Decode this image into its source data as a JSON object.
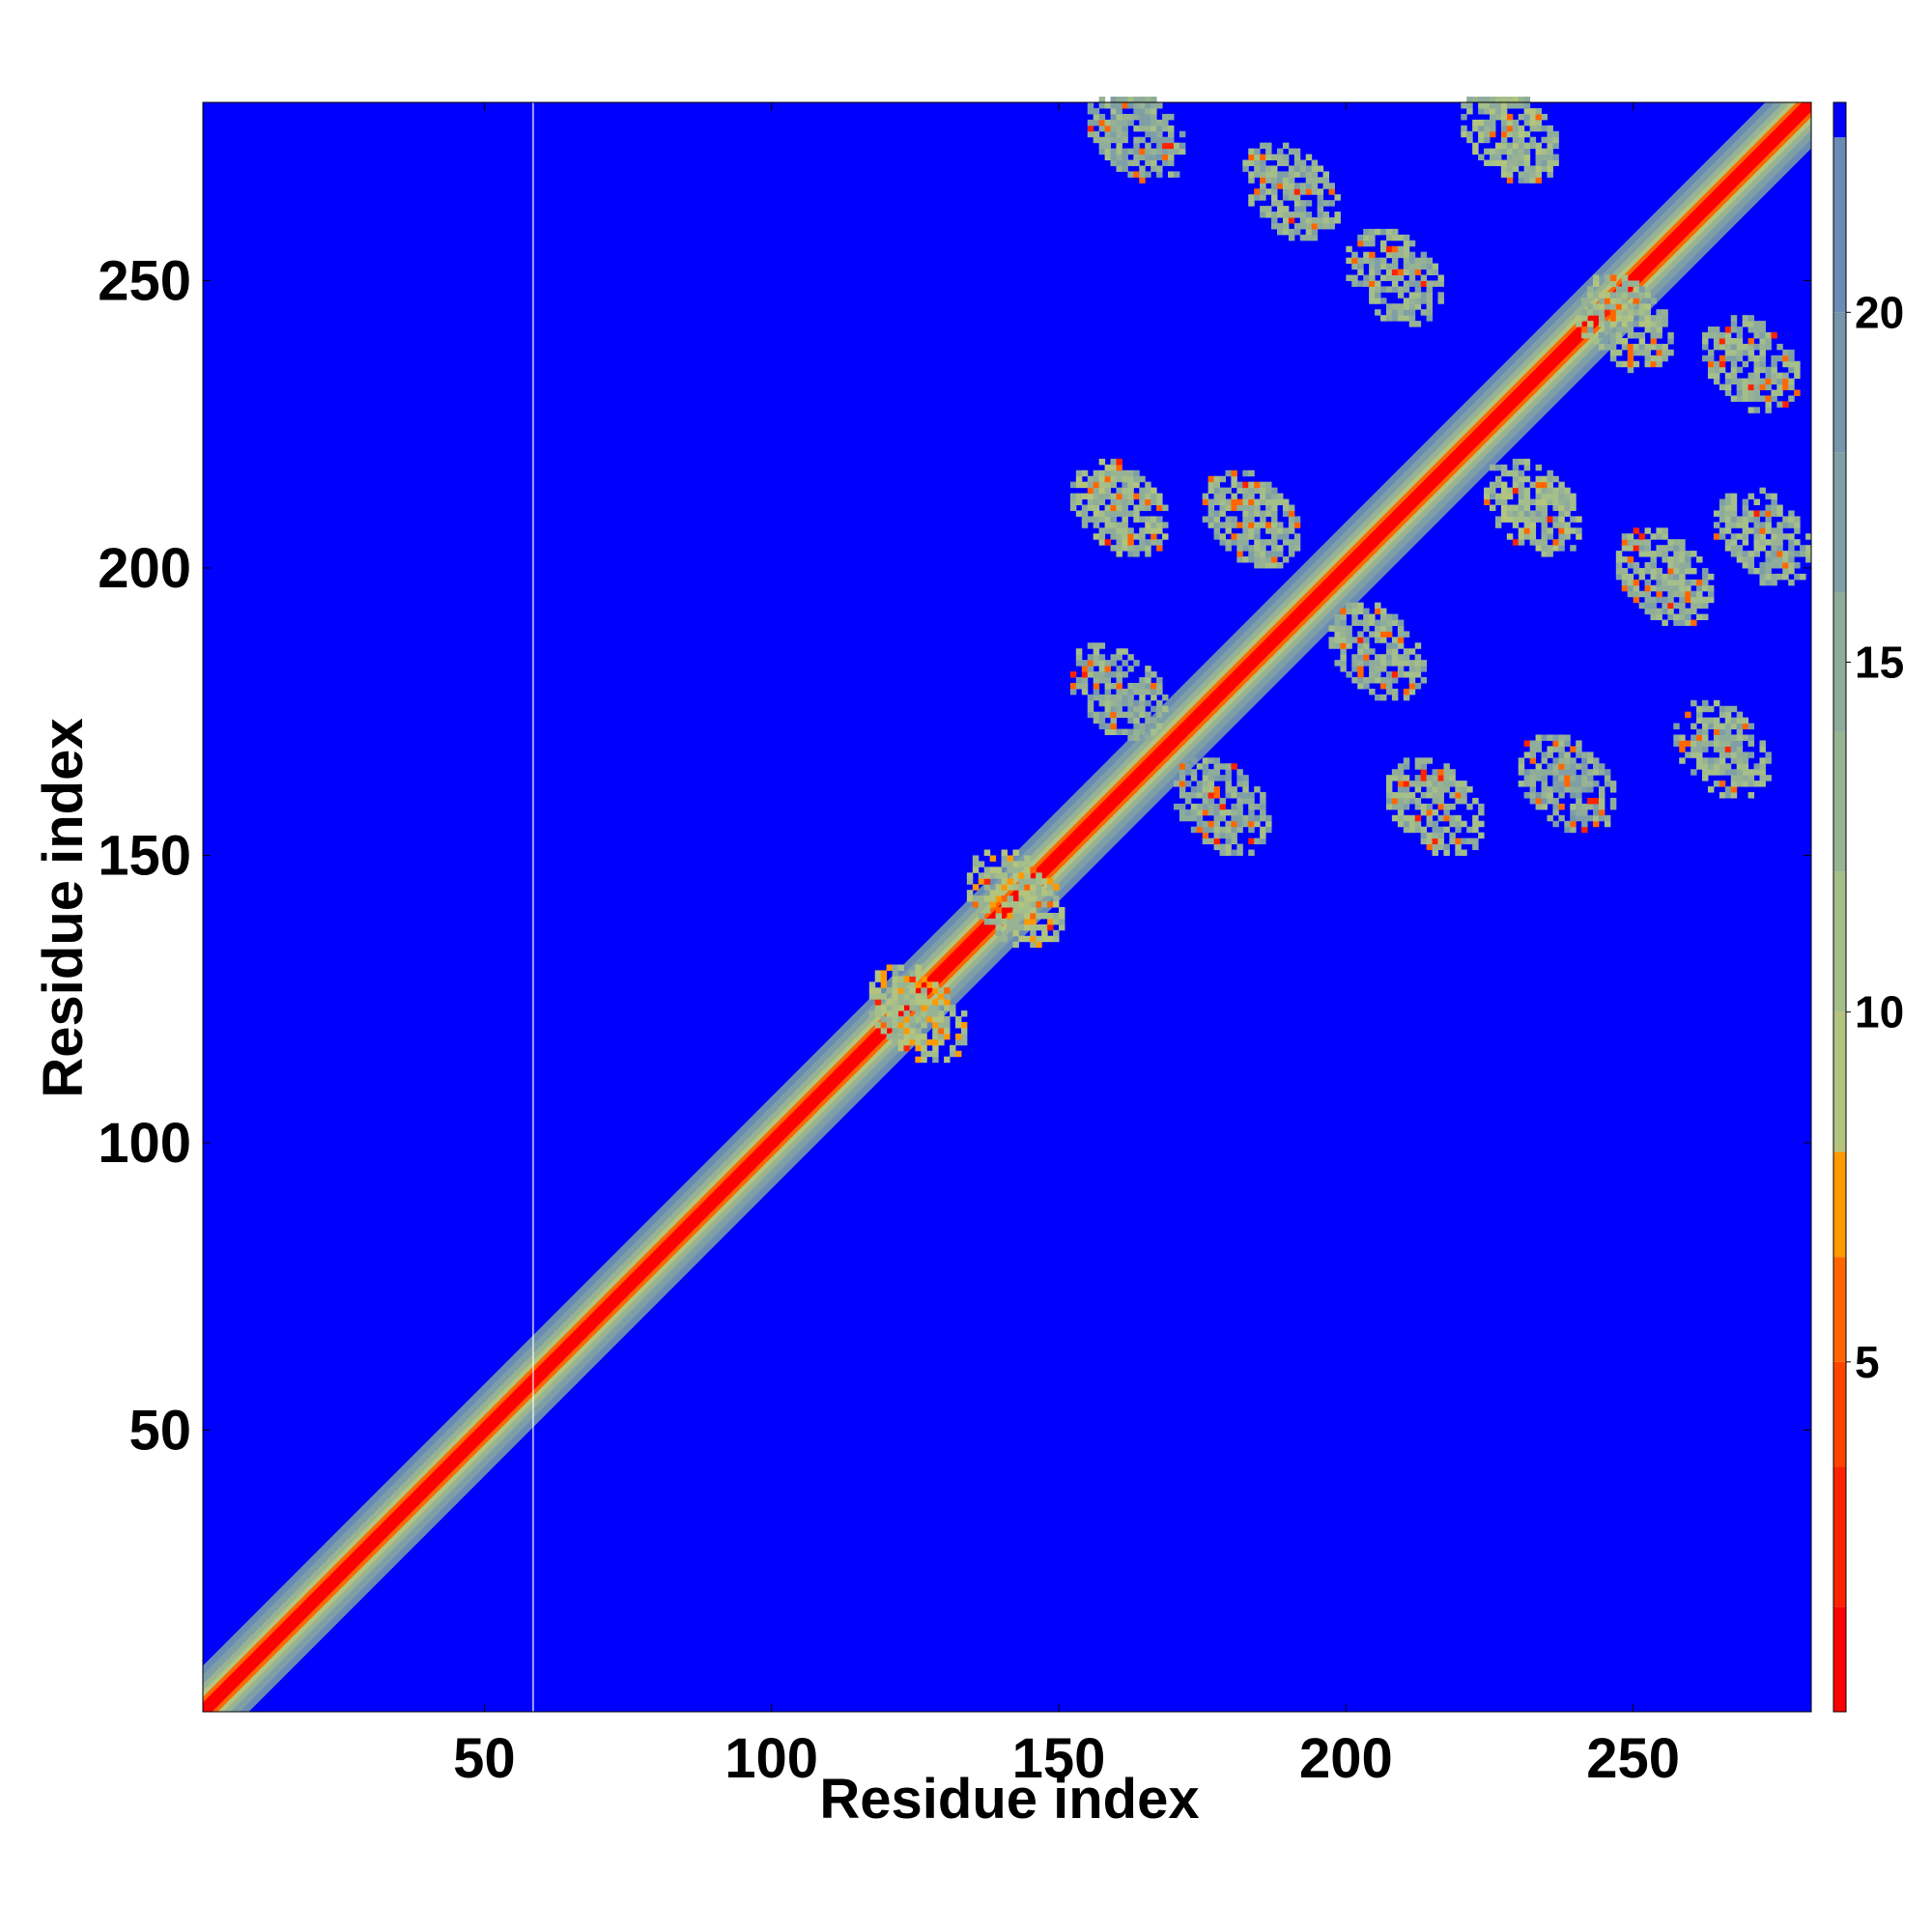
{
  "chart_data": {
    "type": "heatmap",
    "title": "",
    "xlabel": "Residue index",
    "ylabel": "Residue index",
    "xlim": [
      1,
      281
    ],
    "ylim": [
      1,
      281
    ],
    "x_ticks": [
      50,
      100,
      150,
      200,
      250
    ],
    "y_ticks": [
      50,
      100,
      150,
      200,
      250
    ],
    "colorbar": {
      "range": [
        0,
        23
      ],
      "ticks": [
        5,
        10,
        15,
        20
      ],
      "bins": [
        {
          "from": 0,
          "to": 1.5,
          "color": "#ff0000"
        },
        {
          "from": 1.5,
          "to": 3.5,
          "color": "#ff2200"
        },
        {
          "from": 3.5,
          "to": 5,
          "color": "#ff4400"
        },
        {
          "from": 5,
          "to": 6.5,
          "color": "#ff6600"
        },
        {
          "from": 6.5,
          "to": 8,
          "color": "#ff9900"
        },
        {
          "from": 8,
          "to": 10,
          "color": "#b3c47e"
        },
        {
          "from": 10,
          "to": 12,
          "color": "#a5bf8a"
        },
        {
          "from": 12,
          "to": 14,
          "color": "#98b394"
        },
        {
          "from": 14,
          "to": 16,
          "color": "#8eac9b"
        },
        {
          "from": 16,
          "to": 18,
          "color": "#7f9fa6"
        },
        {
          "from": 18,
          "to": 20,
          "color": "#7596ab"
        },
        {
          "from": 20,
          "to": 22.5,
          "color": "#6a8cb4"
        },
        {
          "from": 22.5,
          "to": 23,
          "color": "#0000ff"
        }
      ]
    },
    "background_value_color": "#0000ff",
    "diagonal_band": {
      "from": 1,
      "to": 281,
      "core_value": 1,
      "halfwidth_residues": 8
    },
    "contact_blobs": [
      {
        "x": 163,
        "y": 275,
        "value": 15
      },
      {
        "x": 190,
        "y": 265,
        "value": 14
      },
      {
        "x": 228,
        "y": 275,
        "value": 13
      },
      {
        "x": 208,
        "y": 250,
        "value": 14
      },
      {
        "x": 248,
        "y": 242,
        "value": 13
      },
      {
        "x": 270,
        "y": 235,
        "value": 14
      },
      {
        "x": 160,
        "y": 210,
        "value": 13
      },
      {
        "x": 183,
        "y": 208,
        "value": 14
      },
      {
        "x": 232,
        "y": 210,
        "value": 13
      },
      {
        "x": 255,
        "y": 198,
        "value": 14
      },
      {
        "x": 272,
        "y": 205,
        "value": 14
      },
      {
        "x": 160,
        "y": 178,
        "value": 15
      },
      {
        "x": 205,
        "y": 185,
        "value": 14
      },
      {
        "x": 178,
        "y": 158,
        "value": 15
      },
      {
        "x": 215,
        "y": 158,
        "value": 14
      },
      {
        "x": 238,
        "y": 162,
        "value": 15
      },
      {
        "x": 265,
        "y": 168,
        "value": 14
      },
      {
        "x": 125,
        "y": 122,
        "value": 11
      },
      {
        "x": 142,
        "y": 142,
        "value": 11
      }
    ]
  }
}
